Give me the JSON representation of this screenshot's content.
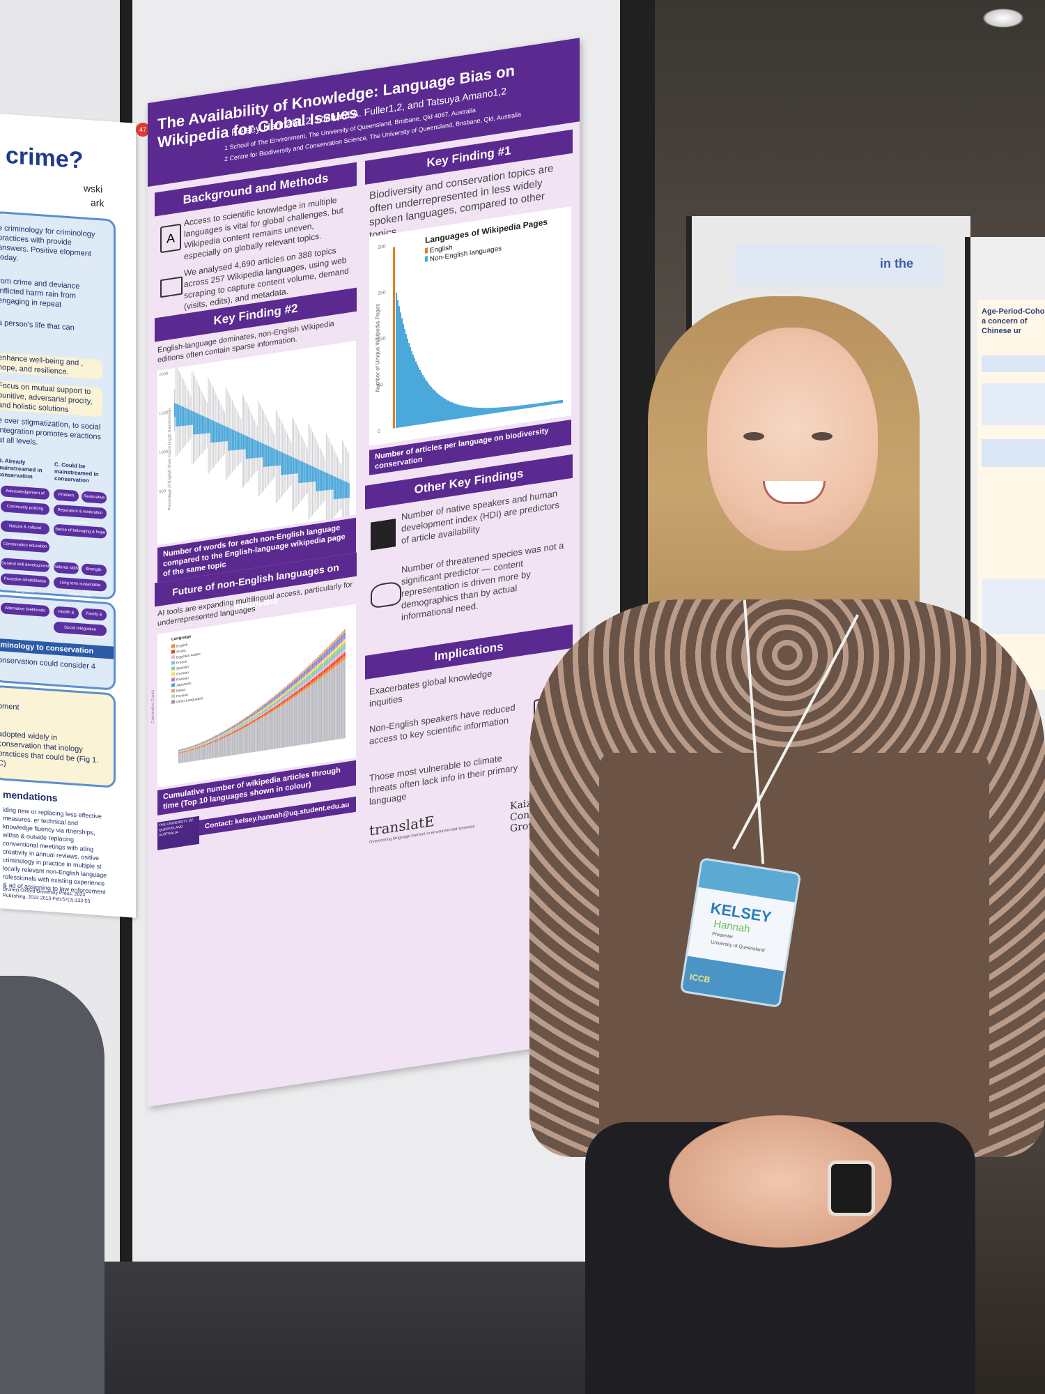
{
  "left_poster": {
    "title": "crime?",
    "name_frag1": "wski",
    "name_frag2": "ark",
    "text1": "e criminology for criminology practices with provide answers. Positive elopment today.",
    "text2": "rom crime and deviance inflicted harm rain from engaging in repeat",
    "text3": "a person's life that can",
    "text4": "enhance well-being and , hope, and resilience.",
    "text5": "Focus on mutual support to punitive, adversarial procity, and holistic solutions",
    "text6": "e over stigmatization, to social integration promotes eractions at all levels.",
    "col_b": "B. Already mainstreamed in conservation",
    "col_c": "C. Could be mainstreamed in conservation",
    "pills": [
      "Acknowledgement of wrongdoing",
      "Problem solving court",
      "Restorative justice",
      "Community policing",
      "Reparation & restoration programs",
      "Natural & cultural reconnections",
      "Sense of belonging & hope",
      "Conservation education",
      "General skill development programs",
      "Tailored skills programs",
      "Strength-based approaches",
      "Proactive rehabilitation programs",
      "Long term sustainable relationships",
      "Alternative livelihoods",
      "Health & wellbeing",
      "Family & community involvement",
      "Social integration"
    ],
    "section_head": "riminology to conservation",
    "text7": "onservation could consider 4",
    "text8": "pment",
    "text9": "adopted widely in conservation that inology practices that could be (Fig 1. C)",
    "rec_head": "mendations",
    "rec_text": "iding new or replacing less effective measures. er technical and knowledge fluency via rtnerships, within & outside replacing conventional meetings with ating creativity in annual reviews. ositive criminology in practice in multiple st locally relevant non-English language rofessionals with existing experience & ad of assigning to law enforcement",
    "refs": "Bruner) Oxford University Press, 2024 Publishing, 2022 2013 Feb;57(2):133-53"
  },
  "poster": {
    "number": "47",
    "title": "The Availability of Knowledge: Language Bias on Wikipedia for Global Issues",
    "authors": "Kelsey Hannah1,2, Richard A. Fuller1,2, and Tatsuya Amano1,2",
    "aff1": "1 School of The Environment, The University of Queensland, Brisbane, Qld 4067, Australia",
    "aff2": "2 Centre for Biodiversity and Conservation Science, The University of Queensland, Brisbane, Qld, Australia",
    "background": {
      "head": "Background and Methods",
      "p1": "Access to scientific knowledge in multiple languages is vital for global challenges, but Wikipedia content remains uneven, especially on globally relevant topics.",
      "p2": "We analysed 4,690 articles on 388 topics across 257 Wikipedia languages, using web scraping to capture content volume, demand (visits, edits), and metadata."
    },
    "kf2": {
      "head": "Key Finding #2",
      "body": "English-language dominates, non-English Wikipedia editions often contain sparse information.",
      "ylabel": "Percentage of English Word Count (log10 transformed)",
      "y_ticks": [
        "2000",
        "1500",
        "1000",
        "500"
      ],
      "caption": "Number of words for each non-English language compared to the English-language wikipedia page of the same topic"
    },
    "future": {
      "head": "Future of non-English languages on wikipedia",
      "body": "AI tools are expanding multilingual access, particularly for underrepresented languages",
      "legend_title": "Language",
      "legend": [
        "English",
        "Arabic",
        "Egyptian Arabic",
        "French",
        "Spanish",
        "German",
        "Russian",
        "Japanese",
        "Italian",
        "Persian",
        "Other Languages"
      ],
      "ylabel": "Cumulative Count",
      "caption": "Cumulative number of wikipedia articles through time (Top 10 languages shown in colour)"
    },
    "kf1": {
      "head": "Key Finding #1",
      "body": "Biodiversity and conservation topics are often underrepresented in less widely spoken languages, compared to other topics",
      "chart_title": "Languages of Wikipedia Pages",
      "legend": [
        "English",
        "Non-English languages"
      ],
      "ylabel": "Number of Unique Wikipedia Pages",
      "y_ticks": [
        "200",
        "150",
        "100",
        "50",
        "0"
      ],
      "caption": "Number of articles per language on biodiversity conservation"
    },
    "other": {
      "head": "Other Key Findings",
      "p1": "Number of native speakers and human development index (HDI) are predictors of article availability",
      "p2": "Number of threatened species was not a significant predictor — content representation is driven more by demographics than by actual informational need."
    },
    "implications": {
      "head": "Implications",
      "p1": "Exacerbates global knowledge inquities",
      "p2": "Non-English speakers have reduced access to key scientific information",
      "p3": "Those most vulnerable to climate threats often lack info in their primary language"
    },
    "uq_logo": "THE UNIVERSITY OF QUEENSLAND AUSTRALIA",
    "contact": "Contact: kelsey.hannah@uq.student.edu.au",
    "translate_logo": "translatE",
    "translate_tag": "Overcoming language barriers in environmental sciences",
    "kaizen_logo": "Kaizen Conservation Group"
  },
  "right_poster": {
    "title": "Age-Period-Cohort a concern of Chinese ur",
    "blue_text": "in the"
  },
  "badge": {
    "first": "KELSEY",
    "last": "Hannah",
    "role": "Presenter",
    "org": "University of Queensland",
    "event": "ICCB"
  }
}
